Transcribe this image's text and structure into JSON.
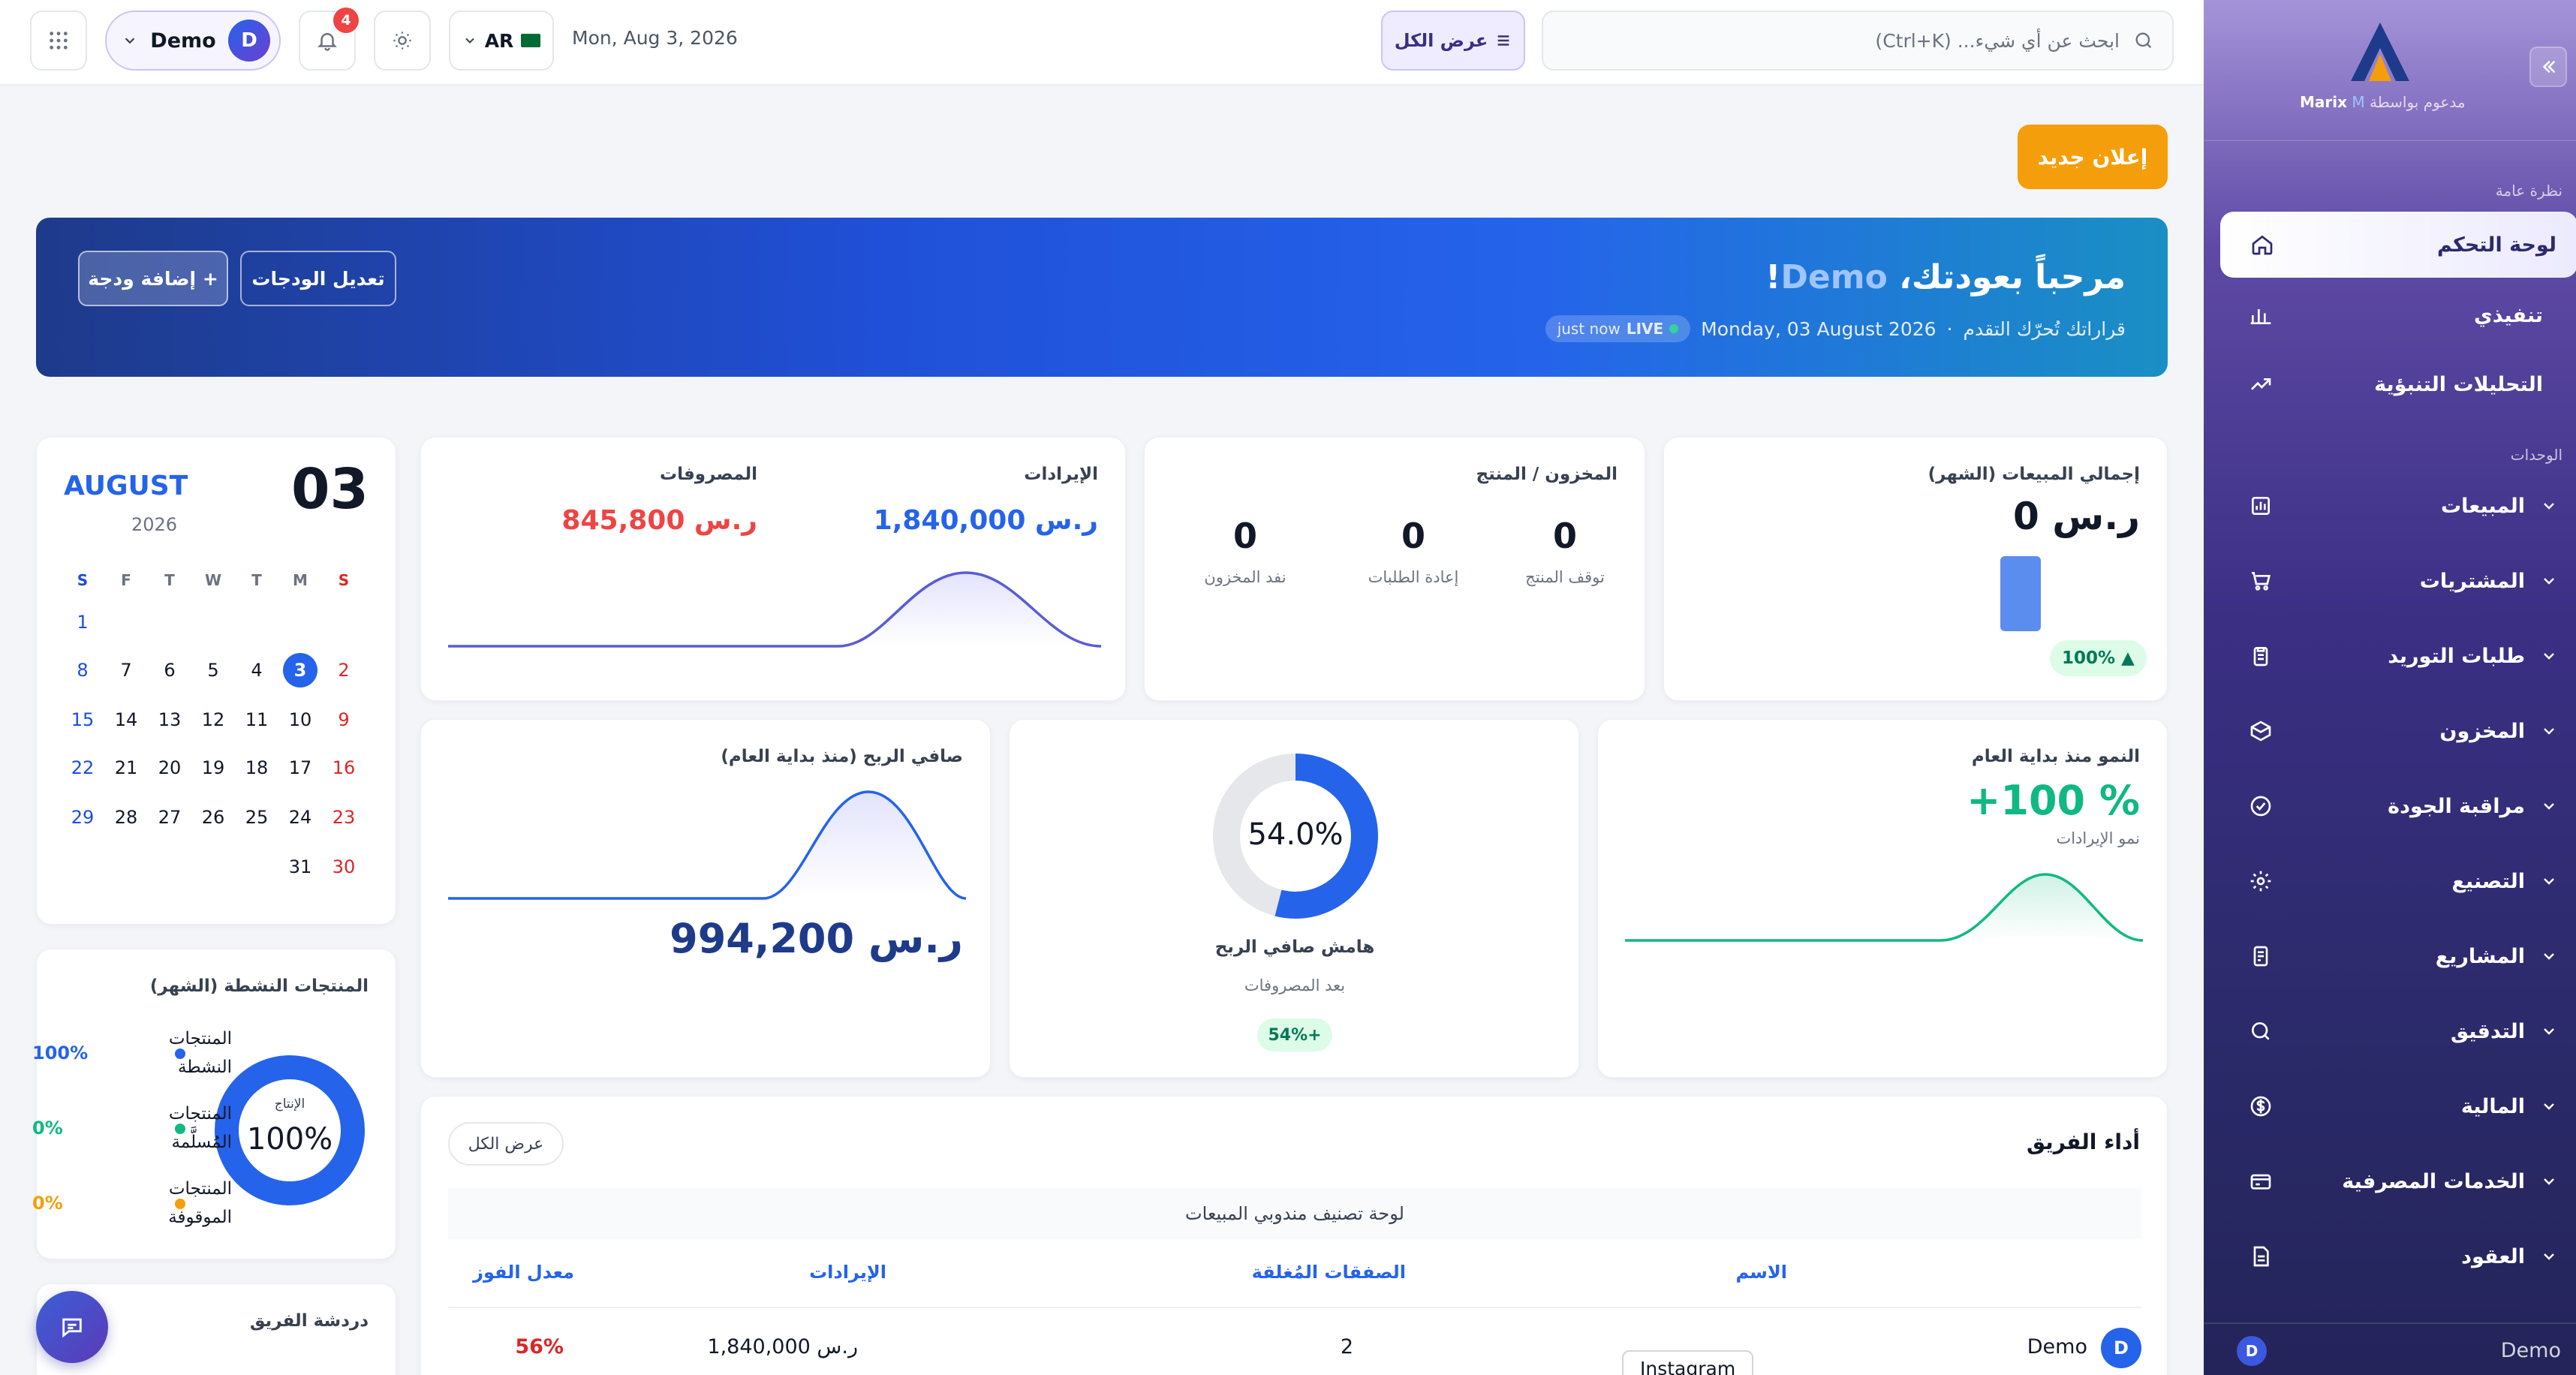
{
  "sidebar": {
    "brand": "Marix",
    "powered_by": "مدعوم بواسطة",
    "section_overview": "نظرة عامة",
    "section_modules": "الوحدات",
    "nav": [
      {
        "label": "لوحة التحكم",
        "icon": "home-icon",
        "active": true
      },
      {
        "label": "تنفيذي",
        "icon": "bar-chart-icon"
      },
      {
        "label": "التحليلات التنبؤية",
        "icon": "trend-up-icon"
      }
    ],
    "modules": [
      {
        "label": "المبيعات",
        "icon": "chart-square-icon"
      },
      {
        "label": "المشتريات",
        "icon": "cart-icon"
      },
      {
        "label": "طلبات التوريد",
        "icon": "clipboard-icon"
      },
      {
        "label": "المخزون",
        "icon": "box-icon"
      },
      {
        "label": "مراقبة الجودة",
        "icon": "check-circle-icon"
      },
      {
        "label": "التصنيع",
        "icon": "gear-icon"
      },
      {
        "label": "المشاريع",
        "icon": "document-icon"
      },
      {
        "label": "التدقيق",
        "icon": "search-icon"
      },
      {
        "label": "المالية",
        "icon": "dollar-icon"
      },
      {
        "label": "الخدمات المصرفية",
        "icon": "credit-card-icon"
      },
      {
        "label": "العقود",
        "icon": "file-text-icon"
      }
    ],
    "user_initial": "D",
    "user_name": "Demo"
  },
  "topbar": {
    "search_placeholder": "ابحث عن أي شيء... (Ctrl+K)",
    "view_all": "عرض الكل",
    "date": "Mon, Aug 3, 2026",
    "language": "AR",
    "notifications_count": "4",
    "user_name": "Demo",
    "user_initial": "D"
  },
  "announce_button": "إعلان جديد",
  "hero": {
    "greeting": "مرحباً بعودتك، ",
    "name": "Demo",
    "exclaim": "!",
    "tagline": "قراراتك تُحرّك التقدم",
    "separator": "·",
    "date": "Monday, 03 August 2026",
    "live_label": "LIVE",
    "live_time": "just now",
    "edit_widgets": "تعديل الودجات",
    "add_widget": "+ إضافة ودجة"
  },
  "total_sales": {
    "title": "إجمالي المبيعات (الشهر)",
    "value": "ر.س 0",
    "change": "▲ 100%"
  },
  "inventory": {
    "title": "المخزون / المنتج",
    "stats": [
      {
        "value": "0",
        "label": "توقف المنتج"
      },
      {
        "value": "0",
        "label": "إعادة الطلبات"
      },
      {
        "value": "0",
        "label": "نفد المخزون"
      }
    ]
  },
  "revenue_expenses": {
    "revenue_label": "الإيرادات",
    "revenue_value": "ر.س 1,840,000",
    "expenses_label": "المصروفات",
    "expenses_value": "ر.س 845,800"
  },
  "calendar": {
    "day": "03",
    "month": "AUGUST",
    "year": "2026",
    "weekdays": [
      "S",
      "M",
      "T",
      "W",
      "T",
      "F",
      "S"
    ],
    "weeks": [
      [
        "",
        "",
        "",
        "",
        "",
        "",
        "1"
      ],
      [
        "2",
        "3",
        "4",
        "5",
        "6",
        "7",
        "8"
      ],
      [
        "9",
        "10",
        "11",
        "12",
        "13",
        "14",
        "15"
      ],
      [
        "16",
        "17",
        "18",
        "19",
        "20",
        "21",
        "22"
      ],
      [
        "23",
        "24",
        "25",
        "26",
        "27",
        "28",
        "29"
      ],
      [
        "30",
        "31",
        "",
        "",
        "",
        "",
        ""
      ]
    ],
    "today": "3"
  },
  "growth": {
    "title": "النمو منذ بداية العام",
    "value": "+100 %",
    "sub": "نمو الإيرادات"
  },
  "margin": {
    "percent": 54.0,
    "percent_label": "54.0%",
    "title": "هامش صافي الربح",
    "sub": "بعد المصروفات",
    "badge": "+54%"
  },
  "net_profit": {
    "title": "صافي الربح (منذ بداية العام)",
    "value": "ر.س 994,200"
  },
  "active_products": {
    "title": "المنتجات النشطة (الشهر)",
    "center_label": "الإنتاج",
    "center_value": "100%",
    "items": [
      {
        "label": "المنتجات النشطة",
        "pct": "100%",
        "color": "#2563eb"
      },
      {
        "label": "المنتجات المُسلَّمة",
        "pct": "0%",
        "color": "#10b981"
      },
      {
        "label": "المنتجات الموقوفة",
        "pct": "0%",
        "color": "#f59e0b"
      }
    ]
  },
  "team_chat": {
    "title": "دردشة الفريق"
  },
  "team_performance": {
    "title": "أداء الفريق",
    "view_all": "عرض الكل",
    "leaderboard": "لوحة تصنيف مندوبي المبيعات",
    "columns": [
      "الاسم",
      "الصفقات المُغلقة",
      "الإيرادات",
      "معدل الفوز"
    ],
    "rows": [
      {
        "initial": "D",
        "name": "Demo",
        "deals": "2",
        "revenue": "ر.س 1,840,000",
        "win_rate": "56%"
      }
    ],
    "tooltip": "Instagram"
  },
  "colors": {
    "primary": "#2563eb",
    "danger": "#ef4444",
    "success": "#10b981",
    "warning": "#f59e0b",
    "sidebar": "#3b2f84"
  }
}
